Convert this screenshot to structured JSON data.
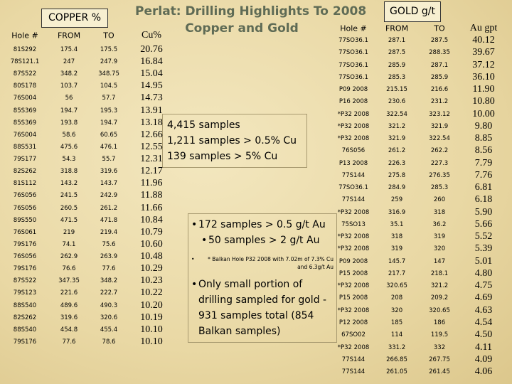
{
  "title_lines": [
    "Perlat: Drilling Highlights To 2008",
    "Copper and Gold"
  ],
  "copper_table": {
    "label": "COPPER %",
    "headers": [
      "Hole #",
      "FROM",
      "TO",
      "Cu%"
    ],
    "rows": [
      [
        "81S292",
        "175.4",
        "175.5",
        "20.76"
      ],
      [
        "78S121.1",
        "247",
        "247.9",
        "16.84"
      ],
      [
        "87S522",
        "348.2",
        "348.75",
        "15.04"
      ],
      [
        "80S178",
        "103.7",
        "104.5",
        "14.95"
      ],
      [
        "76S004",
        "56",
        "57.7",
        "14.73"
      ],
      [
        "85S369",
        "194.7",
        "195.3",
        "13.91"
      ],
      [
        "85S369",
        "193.8",
        "194.7",
        "13.18"
      ],
      [
        "76S004",
        "58.6",
        "60.65",
        "12.66"
      ],
      [
        "88S531",
        "475.6",
        "476.1",
        "12.55"
      ],
      [
        "79S177",
        "54.3",
        "55.7",
        "12.31"
      ],
      [
        "82S262",
        "318.8",
        "319.6",
        "12.17"
      ],
      [
        "81S112",
        "143.2",
        "143.7",
        "11.96"
      ],
      [
        "76S056",
        "241.5",
        "242.9",
        "11.88"
      ],
      [
        "76S056",
        "260.5",
        "261.2",
        "11.66"
      ],
      [
        "89S550",
        "471.5",
        "471.8",
        "10.84"
      ],
      [
        "76S061",
        "219",
        "219.4",
        "10.79"
      ],
      [
        "79S176",
        "74.1",
        "75.6",
        "10.60"
      ],
      [
        "76S056",
        "262.9",
        "263.9",
        "10.48"
      ],
      [
        "79S176",
        "76.6",
        "77.6",
        "10.29"
      ],
      [
        "87S522",
        "347.35",
        "348.2",
        "10.23"
      ],
      [
        "79S123",
        "221.6",
        "222.7",
        "10.22"
      ],
      [
        "88S540",
        "489.6",
        "490.3",
        "10.20"
      ],
      [
        "82S262",
        "319.6",
        "320.6",
        "10.19"
      ],
      [
        "88S540",
        "454.8",
        "455.4",
        "10.10"
      ],
      [
        "79S176",
        "77.6",
        "78.6",
        "10.10"
      ]
    ]
  },
  "gold_table": {
    "label": "GOLD g/t",
    "headers": [
      "Hole #",
      "FROM",
      "TO",
      "Au gpt"
    ],
    "rows": [
      [
        "77SO36.1",
        "287.1",
        "287.5",
        "40.12"
      ],
      [
        "77SO36.1",
        "287.5",
        "288.35",
        "39.67"
      ],
      [
        "77SO36.1",
        "285.9",
        "287.1",
        "37.12"
      ],
      [
        "77SO36.1",
        "285.3",
        "285.9",
        "36.10"
      ],
      [
        "P09 2008",
        "215.15",
        "216.6",
        "11.90"
      ],
      [
        "P16 2008",
        "230.6",
        "231.2",
        "10.80"
      ],
      [
        "*P32 2008",
        "322.54",
        "323.12",
        "10.00"
      ],
      [
        "*P32 2008",
        "321.2",
        "321.9",
        "9.80"
      ],
      [
        "*P32 2008",
        "321.9",
        "322.54",
        "8.85"
      ],
      [
        "76S056",
        "261.2",
        "262.2",
        "8.56"
      ],
      [
        "P13 2008",
        "226.3",
        "227.3",
        "7.79"
      ],
      [
        "77S144",
        "275.8",
        "276.35",
        "7.76"
      ],
      [
        "77SO36.1",
        "284.9",
        "285.3",
        "6.81"
      ],
      [
        "77S144",
        "259",
        "260",
        "6.18"
      ],
      [
        "*P32 2008",
        "316.9",
        "318",
        "5.90"
      ],
      [
        "75SO13",
        "35.1",
        "36.2",
        "5.66"
      ],
      [
        "*P32 2008",
        "318",
        "319",
        "5.52"
      ],
      [
        "*P32 2008",
        "319",
        "320",
        "5.39"
      ],
      [
        "P09 2008",
        "145.7",
        "147",
        "5.01"
      ],
      [
        "P15 2008",
        "217.7",
        "218.1",
        "4.80"
      ],
      [
        "*P32 2008",
        "320.65",
        "321.2",
        "4.75"
      ],
      [
        "P15 2008",
        "208",
        "209.2",
        "4.69"
      ],
      [
        "*P32 2008",
        "320",
        "320.65",
        "4.63"
      ],
      [
        "P12 2008",
        "185",
        "186",
        "4.54"
      ],
      [
        "67SO02",
        "114",
        "119.5",
        "4.50"
      ],
      [
        "*P32 2008",
        "331.2",
        "332",
        "4.11"
      ],
      [
        "77S144",
        "266.85",
        "267.75",
        "4.09"
      ],
      [
        "77S144",
        "261.05",
        "261.45",
        "4.06"
      ]
    ]
  },
  "copper_summary": [
    "4,415 samples",
    "1,211 samples > 0.5% Cu",
    "139 samples > 5% Cu"
  ],
  "gold_notes": [
    "172 samples > 0.5 g/t Au",
    "50 samples > 2 g/t Au",
    "* Balkan Hole P32 2008 with 7.02m of 7.3% Cu and 6.3g/t Au",
    "Only small portion of drilling sampled for gold - 931 samples total (854 Balkan samples)"
  ]
}
